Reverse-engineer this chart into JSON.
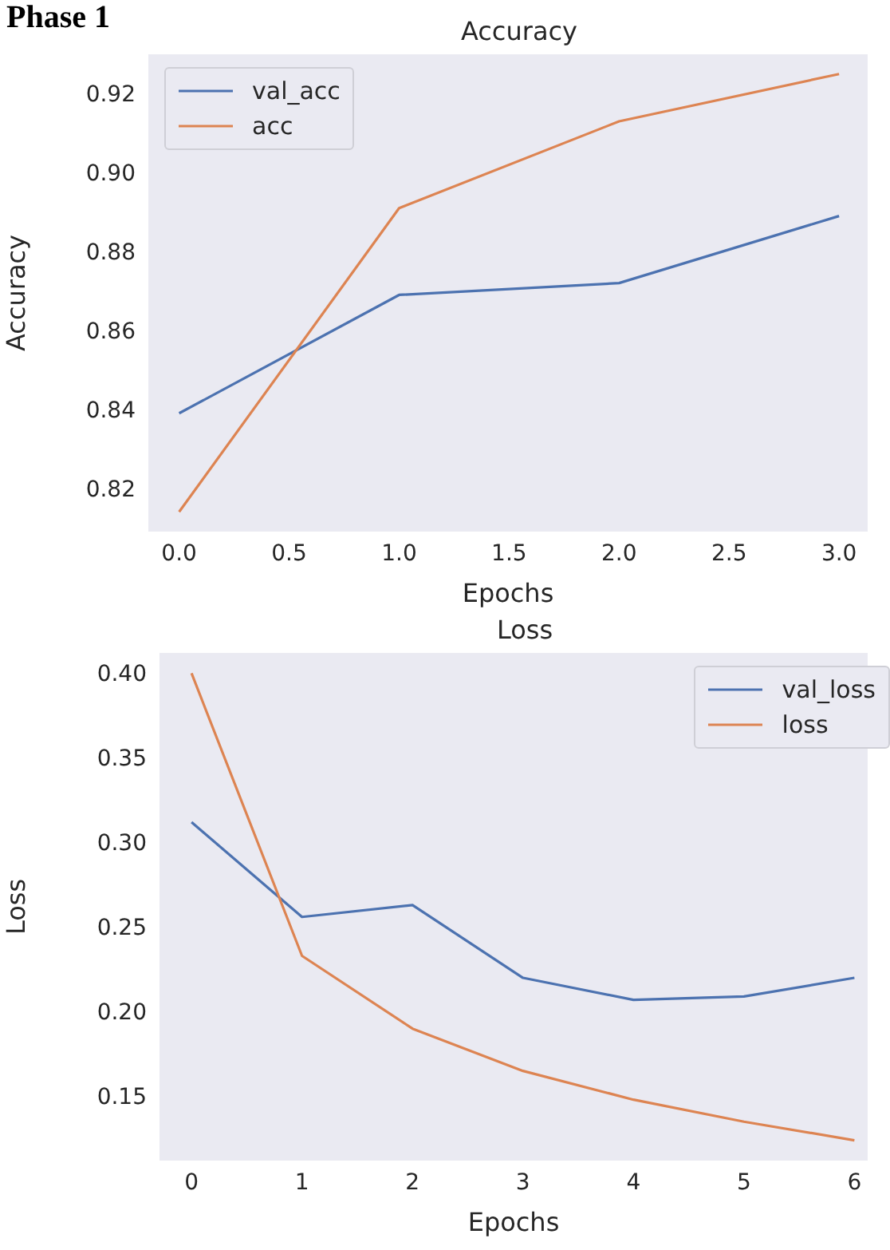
{
  "chart_data": [
    {
      "type": "line",
      "title": "Accuracy",
      "xlabel": "Epochs",
      "ylabel": "Accuracy",
      "annotations": [
        "Phase 1"
      ],
      "x": [
        0,
        1,
        2,
        3
      ],
      "xlim": [
        -0.14,
        3.13
      ],
      "xticks": [
        {
          "value": 0,
          "label": "0.0"
        },
        {
          "value": 0.5,
          "label": "0.5"
        },
        {
          "value": 1,
          "label": "1.0"
        },
        {
          "value": 1.5,
          "label": "1.5"
        },
        {
          "value": 2,
          "label": "2.0"
        },
        {
          "value": 2.5,
          "label": "2.5"
        },
        {
          "value": 3,
          "label": "3.0"
        }
      ],
      "ylim": [
        0.809,
        0.93
      ],
      "yticks": [
        {
          "value": 0.82,
          "label": "0.82"
        },
        {
          "value": 0.84,
          "label": "0.84"
        },
        {
          "value": 0.86,
          "label": "0.86"
        },
        {
          "value": 0.88,
          "label": "0.88"
        },
        {
          "value": 0.9,
          "label": "0.90"
        },
        {
          "value": 0.92,
          "label": "0.92"
        }
      ],
      "grid": false,
      "legend": "top left",
      "series": [
        {
          "name": "val_acc",
          "color": "#4c72b0",
          "values": [
            0.839,
            0.869,
            0.872,
            0.889
          ]
        },
        {
          "name": "acc",
          "color": "#dd8452",
          "values": [
            0.814,
            0.891,
            0.913,
            0.925
          ]
        }
      ]
    },
    {
      "type": "line",
      "title": "Loss",
      "xlabel": "Epochs",
      "ylabel": "Loss",
      "x": [
        0,
        1,
        2,
        3,
        4,
        5,
        6
      ],
      "xlim": [
        -0.29,
        6.12
      ],
      "xticks": [
        0,
        1,
        2,
        3,
        4,
        5,
        6
      ],
      "ylim": [
        0.112,
        0.412
      ],
      "yticks": [
        {
          "value": 0.15,
          "label": "0.15"
        },
        {
          "value": 0.2,
          "label": "0.20"
        },
        {
          "value": 0.25,
          "label": "0.25"
        },
        {
          "value": 0.3,
          "label": "0.30"
        },
        {
          "value": 0.35,
          "label": "0.35"
        },
        {
          "value": 0.4,
          "label": "0.40"
        }
      ],
      "grid": false,
      "legend": "top right",
      "series": [
        {
          "name": "val_loss",
          "color": "#4c72b0",
          "values": [
            0.312,
            0.256,
            0.263,
            0.22,
            0.207,
            0.209,
            0.22
          ]
        },
        {
          "name": "loss",
          "color": "#dd8452",
          "values": [
            0.4,
            0.233,
            0.19,
            0.165,
            0.148,
            0.135,
            0.124
          ]
        }
      ]
    }
  ]
}
